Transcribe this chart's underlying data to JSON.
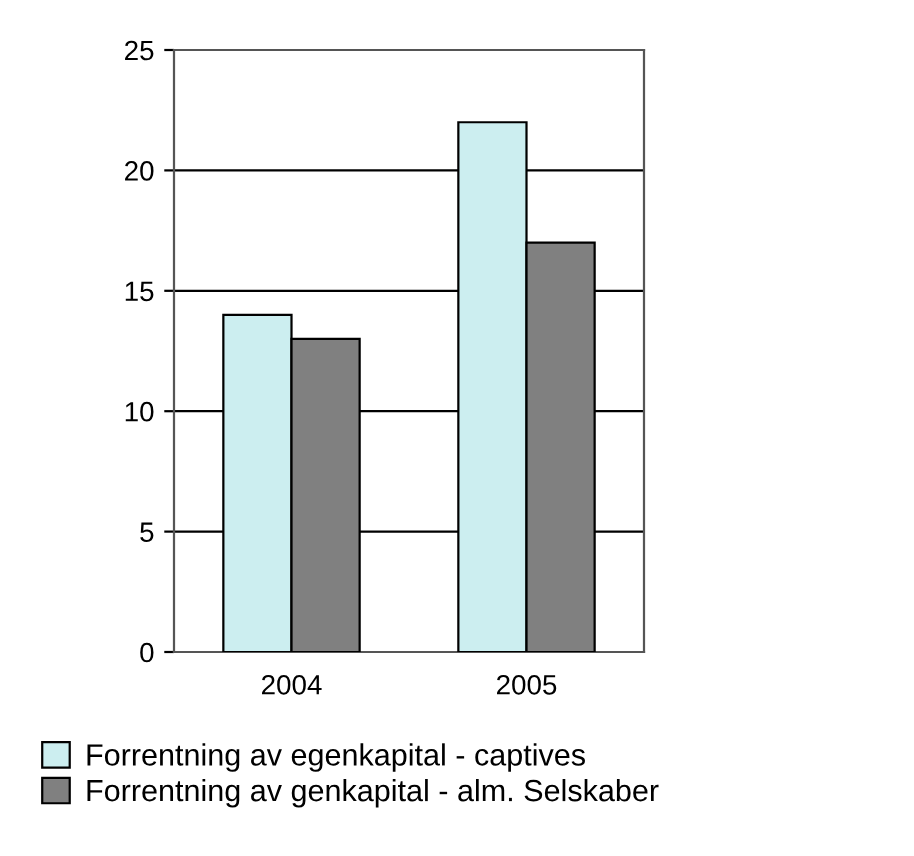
{
  "chart_data": {
    "type": "bar",
    "categories": [
      "2004",
      "2005"
    ],
    "series": [
      {
        "name": "Forrentning av egenkapital - captives",
        "color": "#cceef0",
        "values": [
          14,
          22
        ]
      },
      {
        "name": "Forrentning av genkapital - alm. Selskaber",
        "color": "#808080",
        "values": [
          13,
          17
        ]
      }
    ],
    "ylim": [
      0,
      25
    ],
    "yticks": [
      0,
      5,
      10,
      15,
      20,
      25
    ],
    "grid": "y",
    "legend": "bottom left"
  }
}
